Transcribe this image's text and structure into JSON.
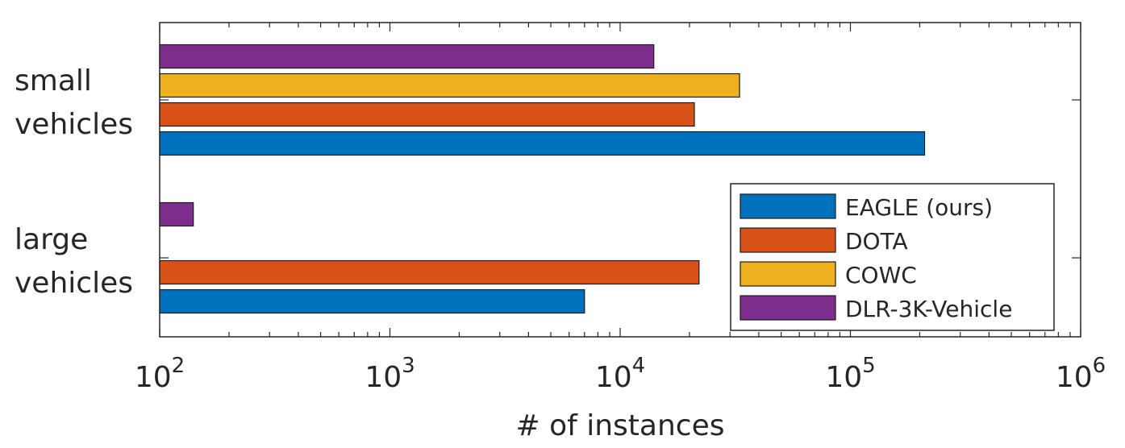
{
  "chart_data": {
    "type": "bar",
    "orientation": "horizontal",
    "title": "",
    "xlabel": "# of instances",
    "ylabel": "",
    "xscale": "log",
    "xlim": [
      100,
      1000000
    ],
    "xticks": [
      {
        "value": 100,
        "base": "10",
        "exp": "2"
      },
      {
        "value": 1000,
        "base": "10",
        "exp": "3"
      },
      {
        "value": 10000,
        "base": "10",
        "exp": "4"
      },
      {
        "value": 100000,
        "base": "10",
        "exp": "5"
      },
      {
        "value": 1000000,
        "base": "10",
        "exp": "6"
      }
    ],
    "categories": [
      {
        "id": "small",
        "lines": [
          "small",
          "vehicles"
        ]
      },
      {
        "id": "large",
        "lines": [
          "large",
          "vehicles"
        ]
      }
    ],
    "series": [
      {
        "name": "EAGLE (ours)",
        "color": "#0072BD",
        "values": [
          210000,
          7000
        ]
      },
      {
        "name": "DOTA",
        "color": "#D95319",
        "values": [
          21000,
          22000
        ]
      },
      {
        "name": "COWC",
        "color": "#EDB120",
        "values": [
          33000,
          null
        ]
      },
      {
        "name": "DLR-3K-Vehicle",
        "color": "#7E2F8E",
        "values": [
          14000,
          140
        ]
      }
    ],
    "legend": {
      "position": "bottom-right",
      "boxed": true
    },
    "grid": false,
    "box": true
  }
}
